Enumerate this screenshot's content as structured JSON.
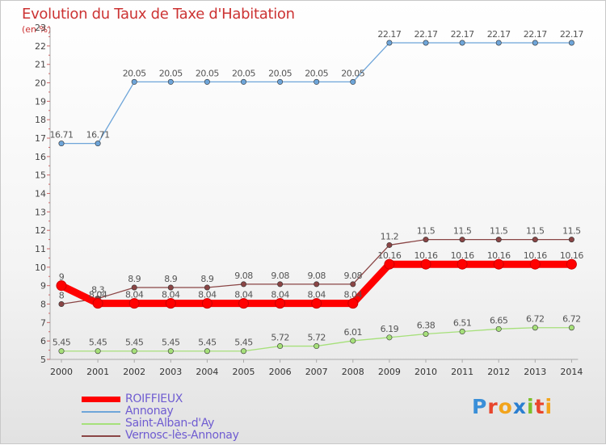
{
  "chart_data": {
    "type": "line",
    "title": "Evolution du Taux de Taxe d'Habitation",
    "unit": "(en %)",
    "categories": [
      "2000",
      "2001",
      "2002",
      "2003",
      "2004",
      "2005",
      "2006",
      "2007",
      "2008",
      "2009",
      "2010",
      "2011",
      "2012",
      "2013",
      "2014"
    ],
    "ylim": [
      5,
      23
    ],
    "yticks": [
      5,
      6,
      7,
      8,
      9,
      10,
      11,
      12,
      13,
      14,
      15,
      16,
      17,
      18,
      19,
      20,
      21,
      22,
      23
    ],
    "grid": false,
    "legend_position": "bottom-left",
    "series": [
      {
        "name": "ROIFFIEUX",
        "color": "#ff0000",
        "values": [
          9,
          8.04,
          8.04,
          8.04,
          8.04,
          8.04,
          8.04,
          8.04,
          8.04,
          10.16,
          10.16,
          10.16,
          10.16,
          10.16,
          10.16
        ],
        "labels": [
          "9",
          "8.04",
          "8.04",
          "8.04",
          "8.04",
          "8.04",
          "8.04",
          "8.04",
          "8.04",
          "10.16",
          "10.16",
          "10.16",
          "10.16",
          "10.16",
          "10.16"
        ]
      },
      {
        "name": "Annonay",
        "color": "#6ea5d9",
        "values": [
          16.71,
          16.71,
          20.05,
          20.05,
          20.05,
          20.05,
          20.05,
          20.05,
          20.05,
          22.17,
          22.17,
          22.17,
          22.17,
          22.17,
          22.17
        ],
        "labels": [
          "16.71",
          "16.71",
          "20.05",
          "20.05",
          "20.05",
          "20.05",
          "20.05",
          "20.05",
          "20.05",
          "22.17",
          "22.17",
          "22.17",
          "22.17",
          "22.17",
          "22.17"
        ]
      },
      {
        "name": "Saint-Alban-d'Ay",
        "color": "#a6e07a",
        "values": [
          5.45,
          5.45,
          5.45,
          5.45,
          5.45,
          5.45,
          5.72,
          5.72,
          6.01,
          6.19,
          6.38,
          6.51,
          6.65,
          6.72,
          6.72
        ],
        "labels": [
          "5.45",
          "5.45",
          "5.45",
          "5.45",
          "5.45",
          "5.45",
          "5.72",
          "5.72",
          "6.01",
          "6.19",
          "6.38",
          "6.51",
          "6.65",
          "6.72",
          "6.72"
        ]
      },
      {
        "name": "Vernosc-lès-Annonay",
        "color": "#8a4545",
        "values": [
          8,
          8.3,
          8.9,
          8.9,
          8.9,
          9.08,
          9.08,
          9.08,
          9.08,
          11.2,
          11.5,
          11.5,
          11.5,
          11.5,
          11.5
        ],
        "labels": [
          "8",
          "8.3",
          "8.9",
          "8.9",
          "8.9",
          "9.08",
          "9.08",
          "9.08",
          "9.08",
          "11.2",
          "11.5",
          "11.5",
          "11.5",
          "11.5",
          "11.5"
        ]
      }
    ]
  },
  "logo_text": "Proxiti"
}
